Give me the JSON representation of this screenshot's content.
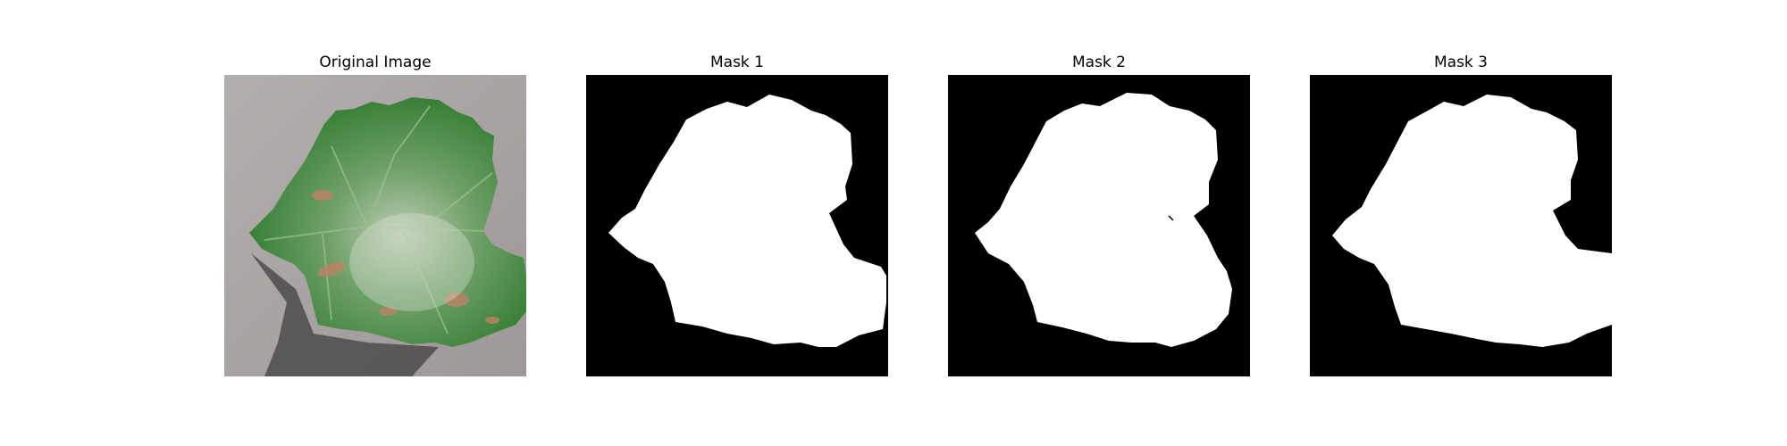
{
  "panels": [
    {
      "title": "Original Image",
      "kind": "photo"
    },
    {
      "title": "Mask 1",
      "kind": "mask"
    },
    {
      "title": "Mask 2",
      "kind": "mask"
    },
    {
      "title": "Mask 3",
      "kind": "mask"
    }
  ],
  "colors": {
    "background": "#ffffff",
    "mask_background": "#000000",
    "mask_foreground": "#ffffff",
    "leaf": "#3f8a3a",
    "leaf_dark": "#2e6b2c",
    "leaf_light": "#b9cdb0",
    "ground": "#a8a4a3",
    "shadow": "#4a4a4a",
    "lesion": "#b8876a"
  }
}
